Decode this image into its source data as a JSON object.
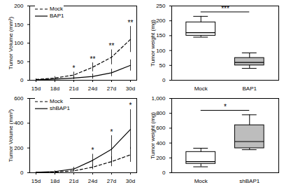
{
  "chart_data": [
    {
      "type": "line",
      "y_label": "Tumor Volume (mm³)",
      "categories": [
        "15d",
        "18d",
        "21d",
        "24d",
        "27d",
        "30d"
      ],
      "ylim": [
        0,
        200
      ],
      "yticks": [
        0,
        50,
        100,
        150,
        200
      ],
      "series": [
        {
          "name": "Mock",
          "color": "#000000",
          "line_style": "dashed",
          "values": [
            2,
            6,
            14,
            35,
            62,
            110
          ],
          "errors": [
            2,
            4,
            8,
            12,
            20,
            35
          ]
        },
        {
          "name": "BAP1",
          "color": "#000000",
          "line_style": "solid",
          "values": [
            1,
            3,
            6,
            10,
            20,
            40
          ],
          "errors": [
            1,
            2,
            4,
            7,
            10,
            15
          ]
        }
      ],
      "annotations": [
        {
          "x": "21d",
          "text": "*"
        },
        {
          "x": "24d",
          "text": "**"
        },
        {
          "x": "27d",
          "text": "**"
        },
        {
          "x": "30d",
          "text": "**"
        }
      ],
      "legend": "top-left"
    },
    {
      "type": "box",
      "y_label": "Tumor weight (mg)",
      "categories": [
        "Mock",
        "BAP1"
      ],
      "colors": [
        "#ffffff",
        "#bdbdbd"
      ],
      "ylim": [
        0,
        250
      ],
      "yticks": [
        0,
        50,
        100,
        150,
        200,
        250
      ],
      "boxes": [
        {
          "min": 145,
          "q1": 150,
          "median": 160,
          "q3": 195,
          "max": 215
        },
        {
          "min": 40,
          "q1": 50,
          "median": 60,
          "q3": 75,
          "max": 92
        }
      ],
      "annotations": [
        {
          "text": "***"
        }
      ]
    },
    {
      "type": "line",
      "y_label": "Tumor Volume (mm³)",
      "categories": [
        "15d",
        "18d",
        "21d",
        "24d",
        "27d",
        "30d"
      ],
      "ylim": [
        0,
        600
      ],
      "yticks": [
        0,
        200,
        400,
        600
      ],
      "series": [
        {
          "name": "Mock",
          "color": "#000000",
          "line_style": "dashed",
          "values": [
            2,
            6,
            15,
            45,
            90,
            145
          ],
          "errors": [
            2,
            4,
            8,
            20,
            40,
            60
          ]
        },
        {
          "name": "shBAP1",
          "color": "#000000",
          "line_style": "solid",
          "values": [
            3,
            10,
            30,
            100,
            190,
            350
          ],
          "errors": [
            2,
            6,
            15,
            50,
            110,
            160
          ]
        }
      ],
      "annotations": [
        {
          "x": "24d",
          "text": "*"
        },
        {
          "x": "27d",
          "text": "*"
        },
        {
          "x": "30d",
          "text": "*"
        }
      ],
      "legend": "top-left"
    },
    {
      "type": "box",
      "y_label": "Tumor weight (mg)",
      "categories": [
        "Mock",
        "shBAP1"
      ],
      "colors": [
        "#ffffff",
        "#bdbdbd"
      ],
      "ylim": [
        0,
        1000
      ],
      "yticks": [
        0,
        200,
        400,
        600,
        800,
        1000
      ],
      "boxes": [
        {
          "min": 80,
          "q1": 120,
          "median": 150,
          "q3": 280,
          "max": 330
        },
        {
          "min": 310,
          "q1": 330,
          "median": 420,
          "q3": 640,
          "max": 780
        }
      ],
      "annotations": [
        {
          "text": "*"
        }
      ]
    }
  ]
}
